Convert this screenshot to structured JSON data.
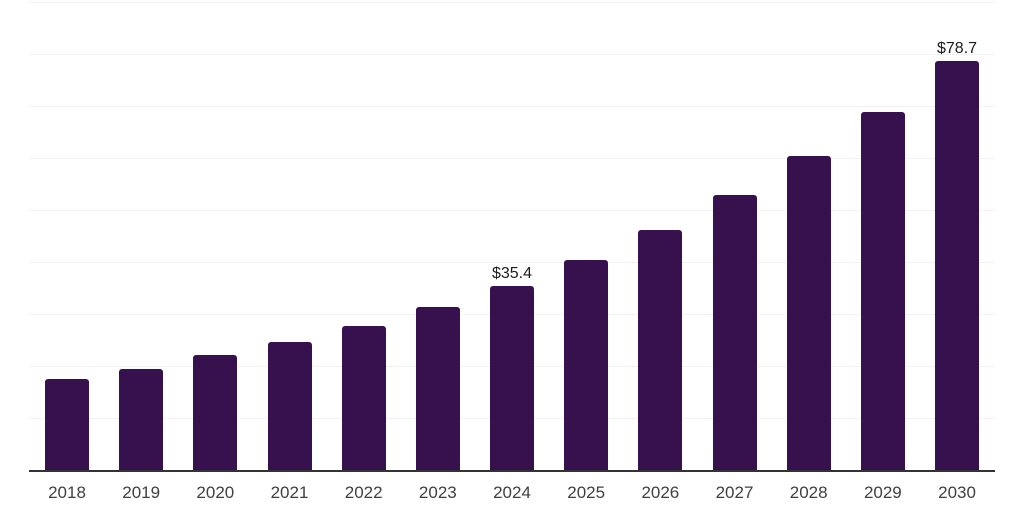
{
  "chart_data": {
    "type": "bar",
    "title": "",
    "xlabel": "",
    "ylabel": "",
    "categories": [
      "2018",
      "2019",
      "2020",
      "2021",
      "2022",
      "2023",
      "2024",
      "2025",
      "2026",
      "2027",
      "2028",
      "2029",
      "2030"
    ],
    "values": [
      17.5,
      19.5,
      22.1,
      24.6,
      27.7,
      31.4,
      35.4,
      40.4,
      46.2,
      52.8,
      60.3,
      68.9,
      78.7
    ],
    "data_labels": {
      "2024": "$35.4",
      "2030": "$78.7"
    },
    "ylim": [
      0,
      90
    ],
    "grid_step": 10,
    "grid": "horizontal-only",
    "legend": "none",
    "colors": {
      "bar": "#36114d",
      "gridline": "#f2f2f2",
      "axis_line": "#333333",
      "tick_label": "#404040",
      "value_label": "#1c1c1c",
      "background": "#ffffff"
    }
  }
}
